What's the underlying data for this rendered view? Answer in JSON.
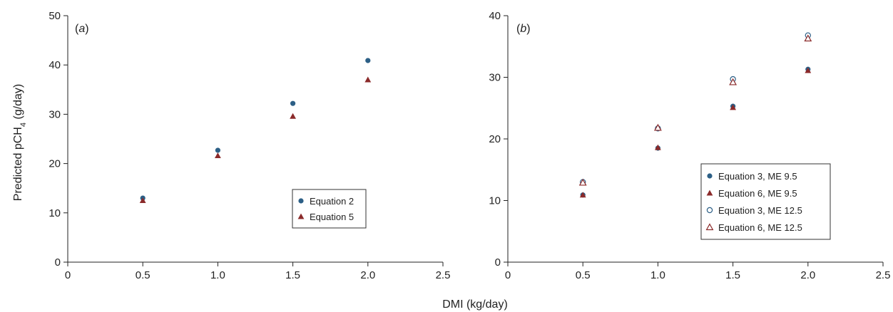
{
  "shared": {
    "xlabel": "DMI (kg/day)",
    "ylabel_main": "Predicted pCH",
    "ylabel_sub": "4",
    "ylabel_tail": " (g/day)"
  },
  "colors": {
    "series_blue": "#2c5f86",
    "series_red": "#8b2a2a"
  },
  "chart_data": [
    {
      "type": "scatter",
      "panel_label": "a",
      "xlim": [
        0,
        2.5
      ],
      "ylim": [
        0,
        50
      ],
      "xticks": [
        "0",
        "0.5",
        "1.0",
        "1.5",
        "2.0",
        "2.5"
      ],
      "yticks": [
        "0",
        "10",
        "20",
        "30",
        "40",
        "50"
      ],
      "grid": false,
      "legend_position": "center-right",
      "series": [
        {
          "name": "Equation 2",
          "marker": "circle-filled",
          "color": "#2c5f86",
          "points": [
            [
              0.5,
              13.0
            ],
            [
              1.0,
              22.7
            ],
            [
              1.5,
              32.2
            ],
            [
              2.0,
              40.9
            ]
          ]
        },
        {
          "name": "Equation 5",
          "marker": "triangle-filled",
          "color": "#8b2a2a",
          "points": [
            [
              0.5,
              12.5
            ],
            [
              1.0,
              21.6
            ],
            [
              1.5,
              29.6
            ],
            [
              2.0,
              37.0
            ]
          ]
        }
      ]
    },
    {
      "type": "scatter",
      "panel_label": "b",
      "xlim": [
        0,
        2.5
      ],
      "ylim": [
        0,
        40
      ],
      "xticks": [
        "0",
        "0.5",
        "1.0",
        "1.5",
        "2.0",
        "2.5"
      ],
      "yticks": [
        "0",
        "10",
        "20",
        "30",
        "40"
      ],
      "grid": false,
      "legend_position": "bottom-right",
      "series": [
        {
          "name": "Equation 3, ME 9.5",
          "marker": "circle-filled",
          "color": "#2c5f86",
          "points": [
            [
              0.5,
              10.9
            ],
            [
              1.0,
              18.5
            ],
            [
              1.5,
              25.3
            ],
            [
              2.0,
              31.3
            ]
          ]
        },
        {
          "name": "Equation 6, ME 9.5",
          "marker": "triangle-filled",
          "color": "#8b2a2a",
          "points": [
            [
              0.5,
              10.9
            ],
            [
              1.0,
              18.6
            ],
            [
              1.5,
              25.1
            ],
            [
              2.0,
              31.1
            ]
          ]
        },
        {
          "name": "Equation 3, ME 12.5",
          "marker": "circle-open",
          "color": "#2c5f86",
          "points": [
            [
              0.5,
              13.0
            ],
            [
              1.0,
              21.7
            ],
            [
              1.5,
              29.7
            ],
            [
              2.0,
              36.8
            ]
          ]
        },
        {
          "name": "Equation 6, ME 12.5",
          "marker": "triangle-open",
          "color": "#8b2a2a",
          "points": [
            [
              0.5,
              12.9
            ],
            [
              1.0,
              21.8
            ],
            [
              1.5,
              29.2
            ],
            [
              2.0,
              36.3
            ]
          ]
        }
      ]
    }
  ]
}
